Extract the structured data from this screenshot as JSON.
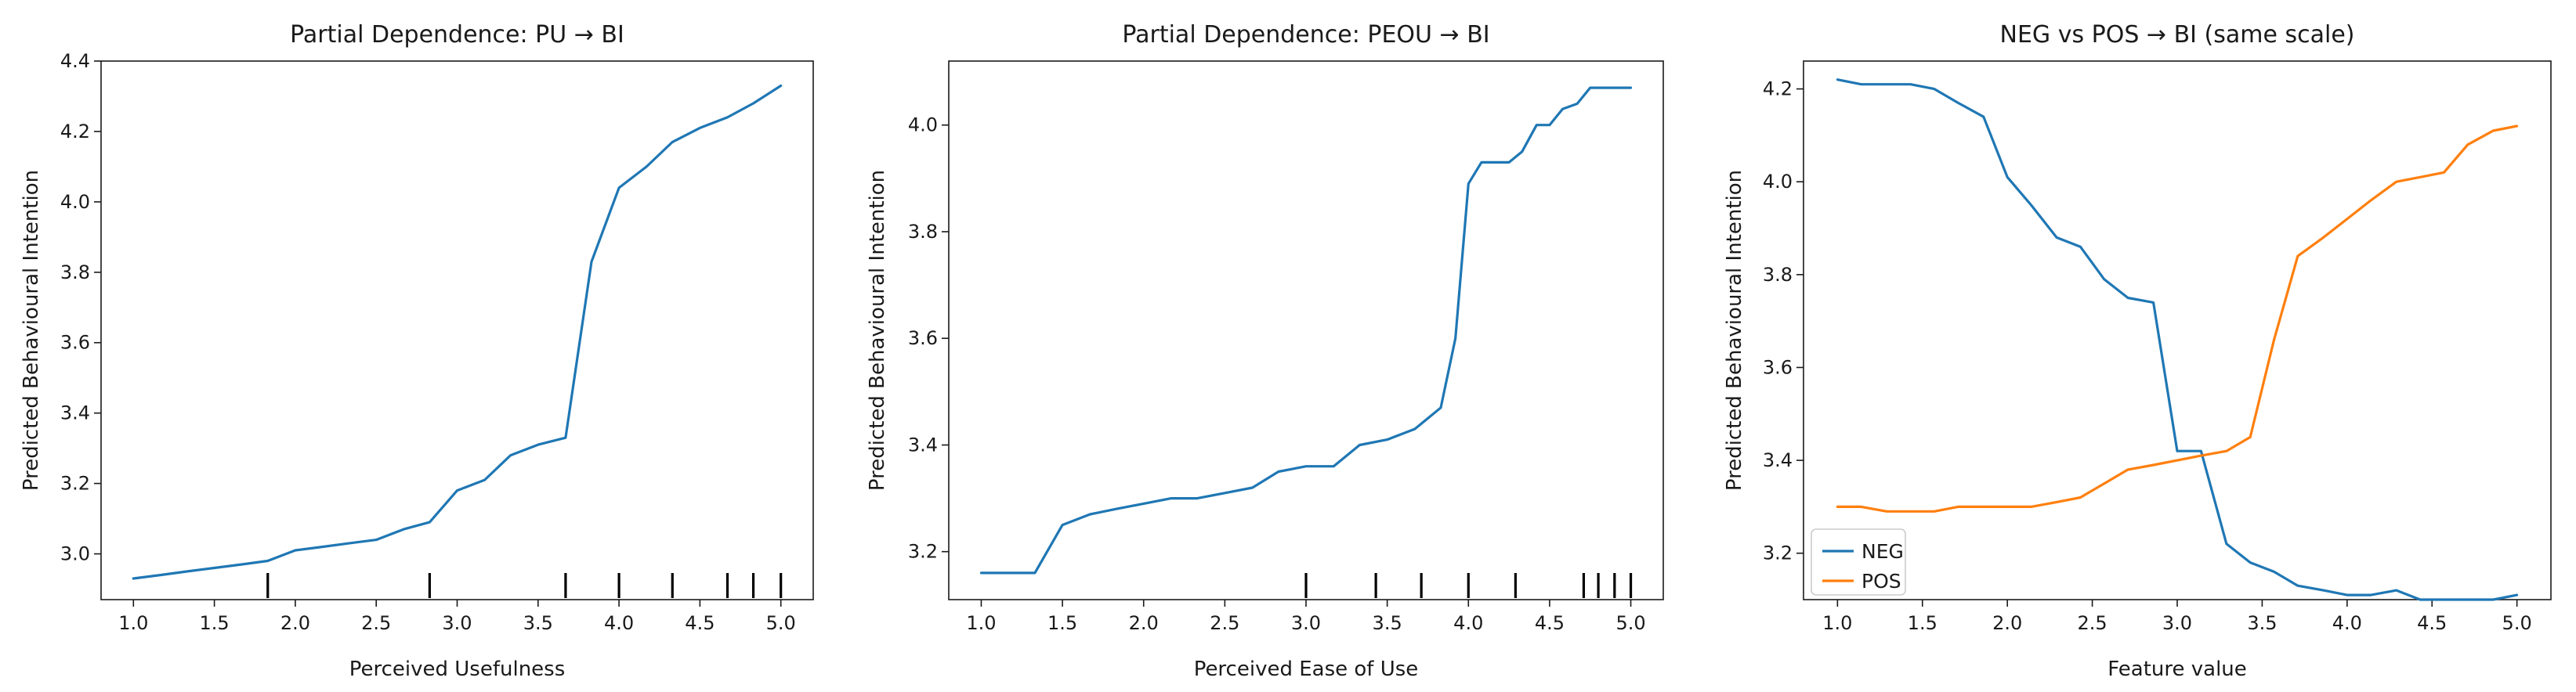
{
  "colors": {
    "blue": "#1f77b4",
    "orange": "#ff7f0e"
  },
  "chart_data": [
    {
      "type": "line",
      "title": "Partial Dependence: PU → BI",
      "xlabel": "Perceived Usefulness",
      "ylabel": "Predicted Behavioural Intention",
      "xlim": [
        0.8,
        5.2
      ],
      "ylim": [
        2.87,
        4.4
      ],
      "xticks": [
        "1.0",
        "1.5",
        "2.0",
        "2.5",
        "3.0",
        "3.5",
        "4.0",
        "4.5",
        "5.0"
      ],
      "yticks": [
        "3.0",
        "3.2",
        "3.4",
        "3.6",
        "3.8",
        "4.0",
        "4.2",
        "4.4"
      ],
      "rug": [
        1.83,
        2.83,
        3.67,
        4.0,
        4.33,
        4.67,
        4.83,
        5.0
      ],
      "series": [
        {
          "color": "#1f77b4",
          "x": [
            1.0,
            1.17,
            1.33,
            1.5,
            1.67,
            1.83,
            2.0,
            2.17,
            2.33,
            2.5,
            2.67,
            2.83,
            3.0,
            3.17,
            3.33,
            3.5,
            3.67,
            3.83,
            4.0,
            4.17,
            4.33,
            4.5,
            4.67,
            4.83,
            5.0
          ],
          "y": [
            2.93,
            2.94,
            2.95,
            2.96,
            2.97,
            2.98,
            3.01,
            3.02,
            3.03,
            3.04,
            3.07,
            3.09,
            3.18,
            3.21,
            3.28,
            3.31,
            3.33,
            3.83,
            4.04,
            4.1,
            4.17,
            4.21,
            4.24,
            4.28,
            4.33
          ]
        }
      ]
    },
    {
      "type": "line",
      "title": "Partial Dependence: PEOU → BI",
      "xlabel": "Perceived Ease of Use",
      "ylabel": "Predicted Behavioural Intention",
      "xlim": [
        0.8,
        5.2
      ],
      "ylim": [
        3.11,
        4.12
      ],
      "xticks": [
        "1.0",
        "1.5",
        "2.0",
        "2.5",
        "3.0",
        "3.5",
        "4.0",
        "4.5",
        "5.0"
      ],
      "yticks": [
        "3.2",
        "3.4",
        "3.6",
        "3.8",
        "4.0"
      ],
      "rug": [
        3.0,
        3.43,
        3.71,
        4.0,
        4.29,
        4.71,
        4.8,
        4.9,
        5.0
      ],
      "series": [
        {
          "color": "#1f77b4",
          "x": [
            1.0,
            1.17,
            1.33,
            1.5,
            1.67,
            1.83,
            2.0,
            2.17,
            2.33,
            2.5,
            2.67,
            2.83,
            3.0,
            3.17,
            3.33,
            3.5,
            3.67,
            3.75,
            3.83,
            3.92,
            4.0,
            4.08,
            4.17,
            4.25,
            4.33,
            4.42,
            4.5,
            4.58,
            4.67,
            4.75,
            4.83,
            4.92,
            5.0
          ],
          "y": [
            3.16,
            3.16,
            3.16,
            3.25,
            3.27,
            3.28,
            3.29,
            3.3,
            3.3,
            3.31,
            3.32,
            3.35,
            3.36,
            3.36,
            3.4,
            3.41,
            3.43,
            3.45,
            3.47,
            3.6,
            3.89,
            3.93,
            3.93,
            3.93,
            3.95,
            4.0,
            4.0,
            4.03,
            4.04,
            4.07,
            4.07,
            4.07,
            4.07
          ]
        }
      ]
    },
    {
      "type": "line",
      "title": "NEG vs POS → BI (same scale)",
      "xlabel": "Feature value",
      "ylabel": "Predicted Behavioural Intention",
      "xlim": [
        0.8,
        5.2
      ],
      "ylim": [
        3.1,
        4.26
      ],
      "xticks": [
        "1.0",
        "1.5",
        "2.0",
        "2.5",
        "3.0",
        "3.5",
        "4.0",
        "4.5",
        "5.0"
      ],
      "yticks": [
        "3.2",
        "3.4",
        "3.6",
        "3.8",
        "4.0",
        "4.2"
      ],
      "legend_position": "lower-left",
      "series": [
        {
          "name": "NEG",
          "color": "#1f77b4",
          "x": [
            1.0,
            1.14,
            1.29,
            1.43,
            1.57,
            1.71,
            1.86,
            2.0,
            2.14,
            2.29,
            2.43,
            2.57,
            2.71,
            2.86,
            3.0,
            3.14,
            3.29,
            3.43,
            3.57,
            3.71,
            3.86,
            4.0,
            4.14,
            4.29,
            4.43,
            4.57,
            4.71,
            4.86,
            5.0
          ],
          "y": [
            4.22,
            4.21,
            4.21,
            4.21,
            4.2,
            4.17,
            4.14,
            4.01,
            3.95,
            3.88,
            3.86,
            3.79,
            3.75,
            3.74,
            3.42,
            3.42,
            3.22,
            3.18,
            3.16,
            3.13,
            3.12,
            3.11,
            3.11,
            3.12,
            3.1,
            3.1,
            3.1,
            3.1,
            3.11
          ]
        },
        {
          "name": "POS",
          "color": "#ff7f0e",
          "x": [
            1.0,
            1.14,
            1.29,
            1.43,
            1.57,
            1.71,
            1.86,
            2.0,
            2.14,
            2.29,
            2.43,
            2.57,
            2.71,
            2.86,
            3.0,
            3.14,
            3.29,
            3.43,
            3.57,
            3.71,
            3.86,
            4.0,
            4.14,
            4.29,
            4.43,
            4.57,
            4.71,
            4.86,
            5.0
          ],
          "y": [
            3.3,
            3.3,
            3.29,
            3.29,
            3.29,
            3.3,
            3.3,
            3.3,
            3.3,
            3.31,
            3.32,
            3.35,
            3.38,
            3.39,
            3.4,
            3.41,
            3.42,
            3.45,
            3.66,
            3.84,
            3.88,
            3.92,
            3.96,
            4.0,
            4.01,
            4.02,
            4.08,
            4.11,
            4.12
          ]
        }
      ]
    }
  ]
}
